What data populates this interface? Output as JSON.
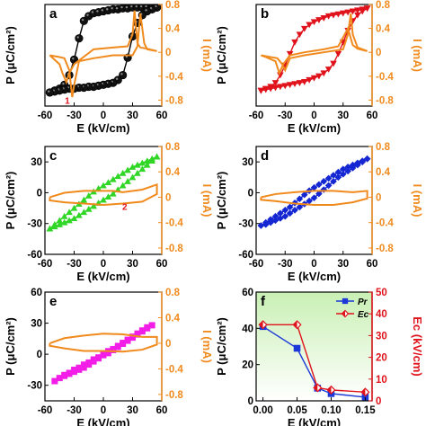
{
  "colors": {
    "orange": "#f08a1c",
    "black": "#000000",
    "red": "#e0121b",
    "green": "#2fd625",
    "blue": "#1427d2",
    "magenta": "#f21ee8",
    "f_panel_bg_top": "#c9f0b4",
    "f_pr": "#1c38d8",
    "f_ec": "#e0121b"
  },
  "axis_text": {
    "p_label": "P (μC/cm²)",
    "i_label": "I (mA)",
    "e_label": "E (kV/cm)",
    "ec_label": "Ec (kV/cm)"
  },
  "chart_data": [
    {
      "panel": "a",
      "type": "line",
      "title": "",
      "xlabel": "E (kV/cm)",
      "ylabel": "P (μC/cm²)",
      "y2label": "I (mA)",
      "xlim": [
        -60,
        60
      ],
      "ylim": [
        -60,
        45
      ],
      "y2lim": [
        -0.9,
        0.8
      ],
      "xticks": [
        -60,
        -30,
        0,
        30,
        60
      ],
      "yticks": [],
      "y2ticks": [
        0.8,
        0.4,
        0.0,
        -0.4,
        -0.8
      ],
      "series": [
        {
          "role": "P-E loop",
          "marker": "circle",
          "color": "black",
          "upper_x": [
            -55,
            -50,
            -45,
            -40,
            -35,
            -30,
            -25,
            -20,
            -15,
            -10,
            -5,
            0,
            5,
            10,
            15,
            20,
            25,
            30,
            35,
            40,
            45,
            50,
            55
          ],
          "upper_y": [
            -46,
            -44,
            -42,
            -38,
            -28,
            -12,
            10,
            28,
            33,
            36,
            37,
            38,
            39,
            40,
            40,
            41,
            41,
            42,
            42,
            42,
            42,
            42,
            42
          ],
          "lower_x": [
            55,
            50,
            45,
            40,
            35,
            30,
            25,
            20,
            15,
            10,
            5,
            0,
            -5,
            -10,
            -15,
            -20,
            -25,
            -30,
            -35,
            -40,
            -45,
            -50,
            -55
          ],
          "lower_y": [
            42,
            40,
            38,
            34,
            26,
            12,
            -10,
            -28,
            -33,
            -36,
            -37,
            -38,
            -39,
            -40,
            -40,
            -41,
            -41,
            -42,
            -42,
            -43,
            -44,
            -45,
            -46
          ]
        },
        {
          "role": "I-E loop",
          "color": "orange",
          "x": [
            -55,
            -45,
            -40,
            -35,
            -32,
            -30,
            -25,
            -10,
            10,
            30,
            35,
            38,
            42,
            45,
            55,
            45,
            38,
            35,
            32,
            30,
            25,
            10,
            -10,
            -30,
            -35,
            -38,
            -42,
            -45,
            -55
          ],
          "y": [
            -0.05,
            -0.08,
            -0.1,
            -0.3,
            -0.75,
            -0.55,
            -0.15,
            -0.1,
            -0.05,
            -0.05,
            0.1,
            0.65,
            0.15,
            0.05,
            0.02,
            0.06,
            0.08,
            0.15,
            0.7,
            0.3,
            0.1,
            0.08,
            0.05,
            -0.2,
            -0.35,
            -0.5,
            -0.35,
            -0.2,
            -0.05
          ]
        }
      ],
      "annotations": [
        {
          "text": "1",
          "x": -37,
          "y": -0.86
        }
      ]
    },
    {
      "panel": "b",
      "type": "line",
      "title": "",
      "xlabel": "E (kV/cm)",
      "ylabel": "P (μC/cm²)",
      "y2label": "I (mA)",
      "xlim": [
        -60,
        60
      ],
      "ylim": [
        -60,
        45
      ],
      "y2lim": [
        -0.9,
        0.8
      ],
      "xticks": [
        -60,
        -30,
        0,
        30,
        60
      ],
      "yticks": [],
      "y2ticks": [
        0.8,
        0.4,
        0.0,
        -0.4,
        -0.8
      ],
      "series": [
        {
          "role": "P-E loop",
          "marker": "triangle-down",
          "color": "red",
          "upper_x": [
            -55,
            -50,
            -45,
            -40,
            -35,
            -30,
            -25,
            -20,
            -15,
            -10,
            -5,
            0,
            5,
            10,
            15,
            20,
            25,
            30,
            35,
            40,
            45,
            50,
            55
          ],
          "upper_y": [
            -44,
            -42,
            -40,
            -36,
            -28,
            -18,
            -6,
            6,
            14,
            20,
            24,
            27,
            29,
            31,
            33,
            34,
            35,
            36,
            37,
            38,
            39,
            40,
            41
          ],
          "lower_x": [
            55,
            50,
            45,
            40,
            35,
            30,
            25,
            20,
            15,
            10,
            5,
            0,
            -5,
            -10,
            -15,
            -20,
            -25,
            -30,
            -35,
            -40,
            -45,
            -50,
            -55
          ],
          "lower_y": [
            41,
            38,
            34,
            28,
            18,
            6,
            -6,
            -16,
            -22,
            -26,
            -29,
            -31,
            -33,
            -35,
            -36,
            -37,
            -38,
            -39,
            -40,
            -41,
            -42,
            -43,
            -44
          ]
        },
        {
          "role": "I-E loop",
          "color": "orange",
          "x": [
            -55,
            -45,
            -38,
            -33,
            -30,
            -25,
            -10,
            10,
            30,
            35,
            38,
            40,
            45,
            55,
            45,
            40,
            35,
            30,
            25,
            10,
            -10,
            -25,
            -32,
            -36,
            -40,
            -50,
            -55
          ],
          "y": [
            -0.05,
            -0.08,
            -0.1,
            -0.2,
            -0.3,
            -0.1,
            -0.05,
            0.0,
            0.05,
            0.3,
            0.65,
            0.3,
            0.08,
            0.02,
            0.06,
            0.12,
            0.4,
            0.25,
            0.1,
            0.05,
            0.0,
            -0.05,
            -0.2,
            -0.35,
            -0.15,
            -0.08,
            -0.05
          ]
        }
      ]
    },
    {
      "panel": "c",
      "type": "line",
      "title": "",
      "xlabel": "E (kV/cm)",
      "ylabel": "P (μC/cm²)",
      "y2label": "I (mA)",
      "xlim": [
        -60,
        60
      ],
      "ylim": [
        -60,
        45
      ],
      "y2lim": [
        -0.9,
        0.8
      ],
      "xticks": [
        -60,
        -30,
        0,
        30,
        60
      ],
      "yticks": [
        30,
        0,
        -30,
        -60
      ],
      "y2ticks": [
        0.8,
        0.4,
        0.0,
        -0.4,
        -0.8
      ],
      "series": [
        {
          "role": "P-E loop",
          "marker": "triangle-up",
          "color": "green",
          "upper_x": [
            -55,
            -50,
            -45,
            -40,
            -35,
            -30,
            -25,
            -20,
            -15,
            -10,
            -5,
            0,
            5,
            10,
            15,
            20,
            25,
            30,
            35,
            40,
            45,
            50,
            55
          ],
          "upper_y": [
            -35,
            -31,
            -27,
            -23,
            -19,
            -15,
            -11,
            -7,
            -3,
            1,
            4,
            7,
            10,
            13,
            16,
            19,
            22,
            25,
            27,
            29,
            31,
            33,
            35
          ],
          "lower_x": [
            55,
            50,
            45,
            40,
            35,
            30,
            25,
            20,
            15,
            10,
            5,
            0,
            -5,
            -10,
            -15,
            -20,
            -25,
            -30,
            -35,
            -40,
            -45,
            -50,
            -55
          ],
          "lower_y": [
            35,
            31,
            27,
            23,
            19,
            15,
            11,
            7,
            3,
            -1,
            -4,
            -7,
            -10,
            -13,
            -16,
            -19,
            -22,
            -25,
            -27,
            -29,
            -31,
            -33,
            -35
          ]
        },
        {
          "role": "I-E loop",
          "color": "orange",
          "x": [
            -55,
            -40,
            -20,
            0,
            10,
            20,
            40,
            55,
            55,
            40,
            20,
            0,
            -20,
            -40,
            -55,
            -55
          ],
          "y": [
            0.0,
            0.07,
            0.1,
            0.1,
            0.1,
            0.08,
            0.12,
            0.2,
            0.05,
            -0.07,
            -0.1,
            -0.12,
            -0.1,
            -0.08,
            -0.05,
            0.0
          ]
        }
      ],
      "annotations": [
        {
          "text": "2",
          "x": 22,
          "y": -0.2
        }
      ]
    },
    {
      "panel": "d",
      "type": "line",
      "title": "",
      "xlabel": "E (kV/cm)",
      "ylabel": "P (μC/cm²)",
      "y2label": "I (mA)",
      "xlim": [
        -60,
        60
      ],
      "ylim": [
        -60,
        45
      ],
      "y2lim": [
        -0.9,
        0.8
      ],
      "xticks": [
        -60,
        -30,
        0,
        30,
        60
      ],
      "yticks": [
        30,
        0,
        -30,
        -60
      ],
      "y2ticks": [
        0.8,
        0.4,
        0.0,
        -0.4,
        -0.8
      ],
      "series": [
        {
          "role": "P-E loop",
          "marker": "diamond",
          "color": "blue",
          "upper_x": [
            -55,
            -50,
            -45,
            -40,
            -35,
            -30,
            -25,
            -20,
            -15,
            -10,
            -5,
            0,
            5,
            10,
            15,
            20,
            25,
            30,
            35,
            40,
            45,
            50,
            55
          ],
          "upper_y": [
            -32,
            -29,
            -26,
            -23,
            -20,
            -17,
            -14,
            -10,
            -6,
            -2,
            2,
            5,
            8,
            11,
            14,
            17,
            20,
            23,
            25,
            27,
            29,
            31,
            33
          ],
          "lower_x": [
            55,
            50,
            45,
            40,
            35,
            30,
            25,
            20,
            15,
            10,
            5,
            0,
            -5,
            -10,
            -15,
            -20,
            -25,
            -30,
            -35,
            -40,
            -45,
            -50,
            -55
          ],
          "lower_y": [
            33,
            30,
            27,
            24,
            21,
            18,
            15,
            11,
            7,
            3,
            -1,
            -5,
            -8,
            -11,
            -14,
            -17,
            -20,
            -23,
            -25,
            -27,
            -29,
            -31,
            -32
          ]
        },
        {
          "role": "I-E loop",
          "color": "orange",
          "x": [
            -55,
            -40,
            -20,
            0,
            20,
            40,
            55,
            55,
            40,
            20,
            0,
            -20,
            -40,
            -55,
            -55
          ],
          "y": [
            0.0,
            0.05,
            0.08,
            0.1,
            0.1,
            0.08,
            0.1,
            -0.02,
            -0.08,
            -0.12,
            -0.12,
            -0.1,
            -0.06,
            -0.04,
            0.0
          ]
        }
      ]
    },
    {
      "panel": "e",
      "type": "line",
      "title": "",
      "xlabel": "E (kV/cm)",
      "ylabel": "P (μC/cm²)",
      "y2label": "I (mA)",
      "xlim": [
        -60,
        60
      ],
      "ylim": [
        -45,
        60
      ],
      "y2lim": [
        -0.9,
        0.8
      ],
      "xticks": [
        -60,
        -30,
        0,
        30,
        60
      ],
      "yticks": [
        60,
        30,
        0,
        -30
      ],
      "y2ticks": [
        0.8,
        0.4,
        0.0,
        -0.4,
        -0.8
      ],
      "series": [
        {
          "role": "P-E loop",
          "marker": "square",
          "color": "magenta",
          "upper_x": [
            -50,
            -45,
            -40,
            -35,
            -30,
            -25,
            -20,
            -15,
            -10,
            -5,
            0,
            5,
            10,
            15,
            20,
            25,
            30,
            35,
            40,
            45,
            50
          ],
          "upper_y": [
            -26,
            -23,
            -20,
            -18,
            -15,
            -13,
            -10,
            -8,
            -5,
            -3,
            0,
            3,
            5,
            8,
            11,
            14,
            17,
            20,
            23,
            26,
            28
          ],
          "lower_x": [
            50,
            45,
            40,
            35,
            30,
            25,
            20,
            15,
            10,
            5,
            0,
            -5,
            -10,
            -15,
            -20,
            -25,
            -30,
            -35,
            -40,
            -45,
            -50
          ],
          "lower_y": [
            28,
            25,
            22,
            19,
            16,
            13,
            10,
            7,
            4,
            1,
            -1,
            -4,
            -7,
            -10,
            -13,
            -15,
            -17,
            -19,
            -21,
            -23,
            -26
          ]
        },
        {
          "role": "I-E loop",
          "color": "orange",
          "x": [
            -55,
            -40,
            -20,
            0,
            20,
            40,
            55,
            55,
            40,
            20,
            0,
            -20,
            -40,
            -55,
            -55
          ],
          "y": [
            0.0,
            0.08,
            0.12,
            0.15,
            0.14,
            0.1,
            0.1,
            -0.02,
            -0.1,
            -0.13,
            -0.12,
            -0.12,
            -0.08,
            -0.04,
            0.0
          ]
        }
      ]
    },
    {
      "panel": "f",
      "type": "line",
      "title": "",
      "xlabel": "E (kV/cm)",
      "ylabel": "P (μC/cm²)",
      "y2label": "Ec (kV/cm)",
      "xlim": [
        -0.01,
        0.16
      ],
      "ylim": [
        0,
        60
      ],
      "y2lim": [
        0,
        50
      ],
      "xticks": [
        0.0,
        0.05,
        0.1,
        0.15
      ],
      "yticks": [
        60,
        40,
        20,
        0
      ],
      "y2ticks": [
        50,
        40,
        30,
        20,
        10,
        0
      ],
      "series": [
        {
          "name": "Pr",
          "axis": "left",
          "marker": "square",
          "color": "f_pr",
          "x": [
            0.0,
            0.05,
            0.08,
            0.1,
            0.15
          ],
          "y": [
            41,
            29,
            7,
            4,
            2
          ]
        },
        {
          "name": "Ec",
          "axis": "right",
          "marker": "diamond-half",
          "color": "f_ec",
          "x": [
            0.0,
            0.05,
            0.08,
            0.1,
            0.15
          ],
          "y": [
            35,
            35,
            6,
            5,
            4
          ]
        }
      ],
      "legend": {
        "position": "top-right",
        "entries": [
          "Pr",
          "Ec"
        ]
      }
    }
  ]
}
